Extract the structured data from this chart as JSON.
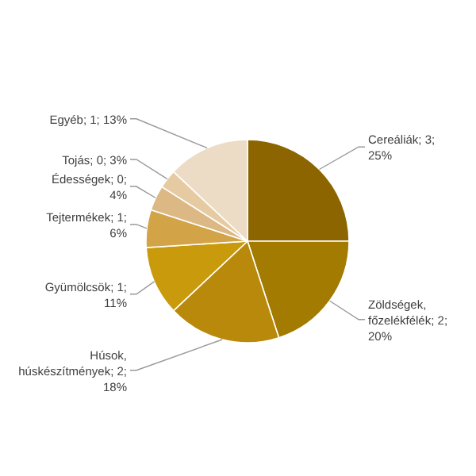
{
  "chart_data": {
    "type": "pie",
    "categories": [
      "Cereáliák",
      "Zöldségek, főzelékfélék",
      "Húsok, húskészítmények",
      "Gyümölcsök",
      "Tejtermékek",
      "Édességek",
      "Tojás",
      "Egyéb"
    ],
    "values": [
      25,
      20,
      18,
      11,
      6,
      4,
      3,
      13
    ],
    "value_labels": [
      "3; 25%",
      "2; 20%",
      "2; 18%",
      "1; 11%",
      "1; 6%",
      "0; 4%",
      "0; 3%",
      "1; 13%"
    ],
    "colors": [
      "#8c6500",
      "#a27b00",
      "#b8890a",
      "#c99a0b",
      "#d3a447",
      "#dcb885",
      "#e6cba2",
      "#ecdbc5"
    ],
    "legend": false
  }
}
